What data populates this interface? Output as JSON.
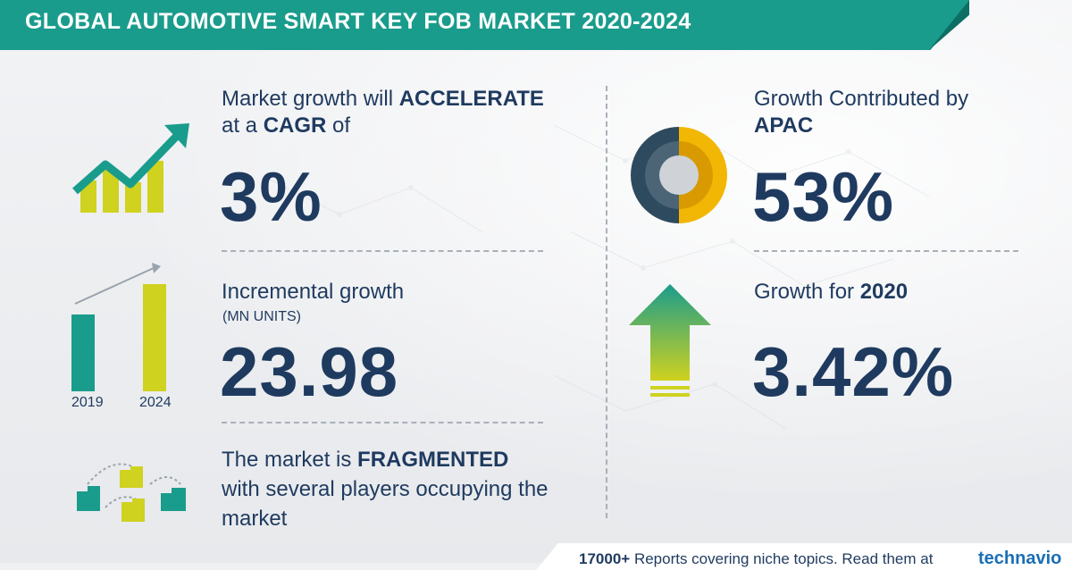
{
  "title": "GLOBAL AUTOMOTIVE SMART KEY FOB MARKET 2020-2024",
  "cagr": {
    "line1_prefix": "Market growth will ",
    "line1_bold": "ACCELERATE",
    "line2_prefix": "at a ",
    "line2_bold": "CAGR",
    "line2_suffix": " of",
    "value": "3%"
  },
  "incremental": {
    "label": "Incremental growth",
    "unit": "(MN UNITS)",
    "value": "23.98",
    "bar_labels": [
      "2019",
      "2024"
    ]
  },
  "market": {
    "line1_prefix": "The market is ",
    "line1_bold": "FRAGMENTED",
    "line2": "with several players occupying the",
    "line3": "market"
  },
  "apac": {
    "line1": "Growth Contributed by",
    "line2_bold": "APAC",
    "value": "53%"
  },
  "growth_year": {
    "prefix": "Growth for ",
    "year": "2020",
    "value": "3.42%"
  },
  "footer": {
    "count": "17000+",
    "text": "Reports covering niche topics. Read them at",
    "brand": "technavio"
  },
  "colors": {
    "teal": "#1a9c8c",
    "navy": "#1f3a5f",
    "yellow": "#f2b705",
    "olive": "#cfd21f"
  }
}
